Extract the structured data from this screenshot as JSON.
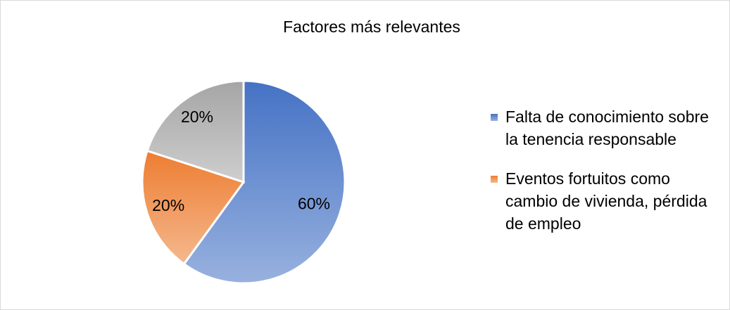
{
  "chart_data": {
    "type": "pie",
    "title": "Factores más relevantes",
    "categories": [
      "Falta de conocimiento sobre la tenencia responsable",
      "Eventos fortuitos como cambio de vivienda, pérdida de empleo",
      null
    ],
    "values": [
      60,
      20,
      20
    ],
    "value_labels": [
      "60%",
      "20%",
      "20%"
    ],
    "colors": [
      "#4472c4",
      "#ed7d31",
      "#a5a5a5"
    ],
    "legend": "right"
  }
}
